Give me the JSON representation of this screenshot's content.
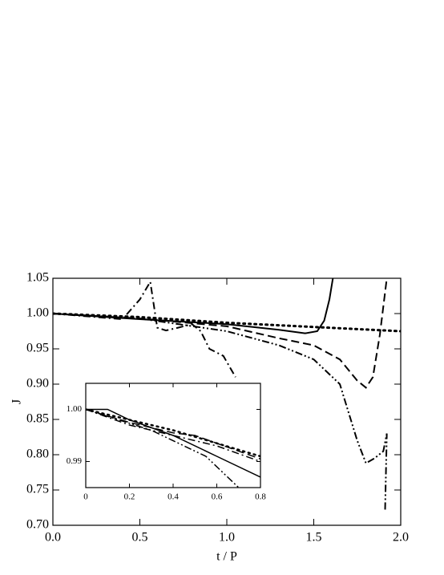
{
  "chart_data": [
    {
      "type": "line",
      "x_label": "t / P",
      "y_label": "J",
      "xlim": [
        0,
        2
      ],
      "ylim": [
        0.7,
        1.05
      ],
      "xticks": [
        {
          "value": 0,
          "label": "0.0"
        },
        {
          "value": 0.5,
          "label": "0.5"
        },
        {
          "value": 1,
          "label": "1.0"
        },
        {
          "value": 1.5,
          "label": "1.5"
        },
        {
          "value": 2,
          "label": "2.0"
        }
      ],
      "yticks": [
        {
          "value": 0.7,
          "label": "0.70"
        },
        {
          "value": 0.75,
          "label": "0.75"
        },
        {
          "value": 0.8,
          "label": "0.80"
        },
        {
          "value": 0.85,
          "label": "0.85"
        },
        {
          "value": 0.9,
          "label": "0.90"
        },
        {
          "value": 0.95,
          "label": "0.95"
        },
        {
          "value": 1.0,
          "label": "1.00"
        },
        {
          "value": 1.05,
          "label": "1.05"
        }
      ],
      "series": [
        {
          "color": "#000000",
          "dash": "solid",
          "x": [
            0,
            0.5,
            1.0,
            1.3,
            1.45,
            1.52,
            1.56,
            1.59,
            1.61
          ],
          "values": [
            1.0,
            0.992,
            0.985,
            0.977,
            0.972,
            0.975,
            0.99,
            1.02,
            1.05
          ]
        },
        {
          "color": "#000000",
          "dash": "dashed",
          "x": [
            0,
            0.5,
            1.0,
            1.3,
            1.5,
            1.65,
            1.75,
            1.8,
            1.84,
            1.88,
            1.92
          ],
          "values": [
            1.0,
            0.993,
            0.982,
            0.965,
            0.955,
            0.935,
            0.905,
            0.895,
            0.91,
            0.97,
            1.05
          ]
        },
        {
          "color": "#000000",
          "dash": "dotted",
          "x": [
            0,
            0.5,
            1.0,
            1.5,
            2.0
          ],
          "values": [
            1.0,
            0.995,
            0.987,
            0.981,
            0.975
          ]
        },
        {
          "color": "#000000",
          "dash": "dashdot",
          "x": [
            0,
            0.2,
            0.4,
            0.5,
            0.56,
            0.6,
            0.65,
            0.72,
            0.8,
            0.85,
            0.9,
            0.98,
            1.05
          ],
          "values": [
            1.0,
            0.996,
            0.992,
            1.02,
            1.045,
            0.98,
            0.976,
            0.98,
            0.985,
            0.975,
            0.95,
            0.94,
            0.91
          ]
        },
        {
          "color": "#000000",
          "dash": "dashdotdot",
          "x": [
            0,
            0.5,
            1.0,
            1.3,
            1.5,
            1.65,
            1.75,
            1.8,
            1.85,
            1.9,
            1.92,
            1.91
          ],
          "values": [
            1.0,
            0.993,
            0.975,
            0.955,
            0.935,
            0.9,
            0.82,
            0.788,
            0.795,
            0.805,
            0.83,
            0.72
          ]
        }
      ]
    },
    {
      "type": "line",
      "xlim": [
        0,
        0.8
      ],
      "ylim": [
        0.985,
        1.005
      ],
      "xticks": [
        0,
        0.2,
        0.4,
        0.6,
        0.8
      ],
      "yticks": [
        {
          "value": 0.99,
          "label": "0.99"
        },
        {
          "value": 1.0,
          "label": "1.00"
        }
      ],
      "series": [
        {
          "color": "#000000",
          "dash": "solid",
          "x": [
            0,
            0.1,
            0.2,
            0.4,
            0.6,
            0.8
          ],
          "values": [
            1.0,
            1.0,
            0.998,
            0.995,
            0.991,
            0.987
          ]
        },
        {
          "color": "#000000",
          "dash": "dashed",
          "x": [
            0,
            0.2,
            0.4,
            0.5,
            0.8
          ],
          "values": [
            1.0,
            0.9975,
            0.9955,
            0.995,
            0.9905
          ]
        },
        {
          "color": "#000000",
          "dash": "dotted",
          "x": [
            0,
            0.4,
            0.8
          ],
          "values": [
            1.0,
            0.996,
            0.991
          ]
        },
        {
          "color": "#000000",
          "dash": "dashdot",
          "x": [
            0,
            0.2,
            0.4,
            0.6,
            0.8
          ],
          "values": [
            1.0,
            0.997,
            0.995,
            0.993,
            0.99
          ]
        },
        {
          "color": "#000000",
          "dash": "dashdotdot",
          "x": [
            0,
            0.3,
            0.55,
            0.7
          ],
          "values": [
            1.0,
            0.996,
            0.991,
            0.985
          ]
        }
      ]
    }
  ]
}
